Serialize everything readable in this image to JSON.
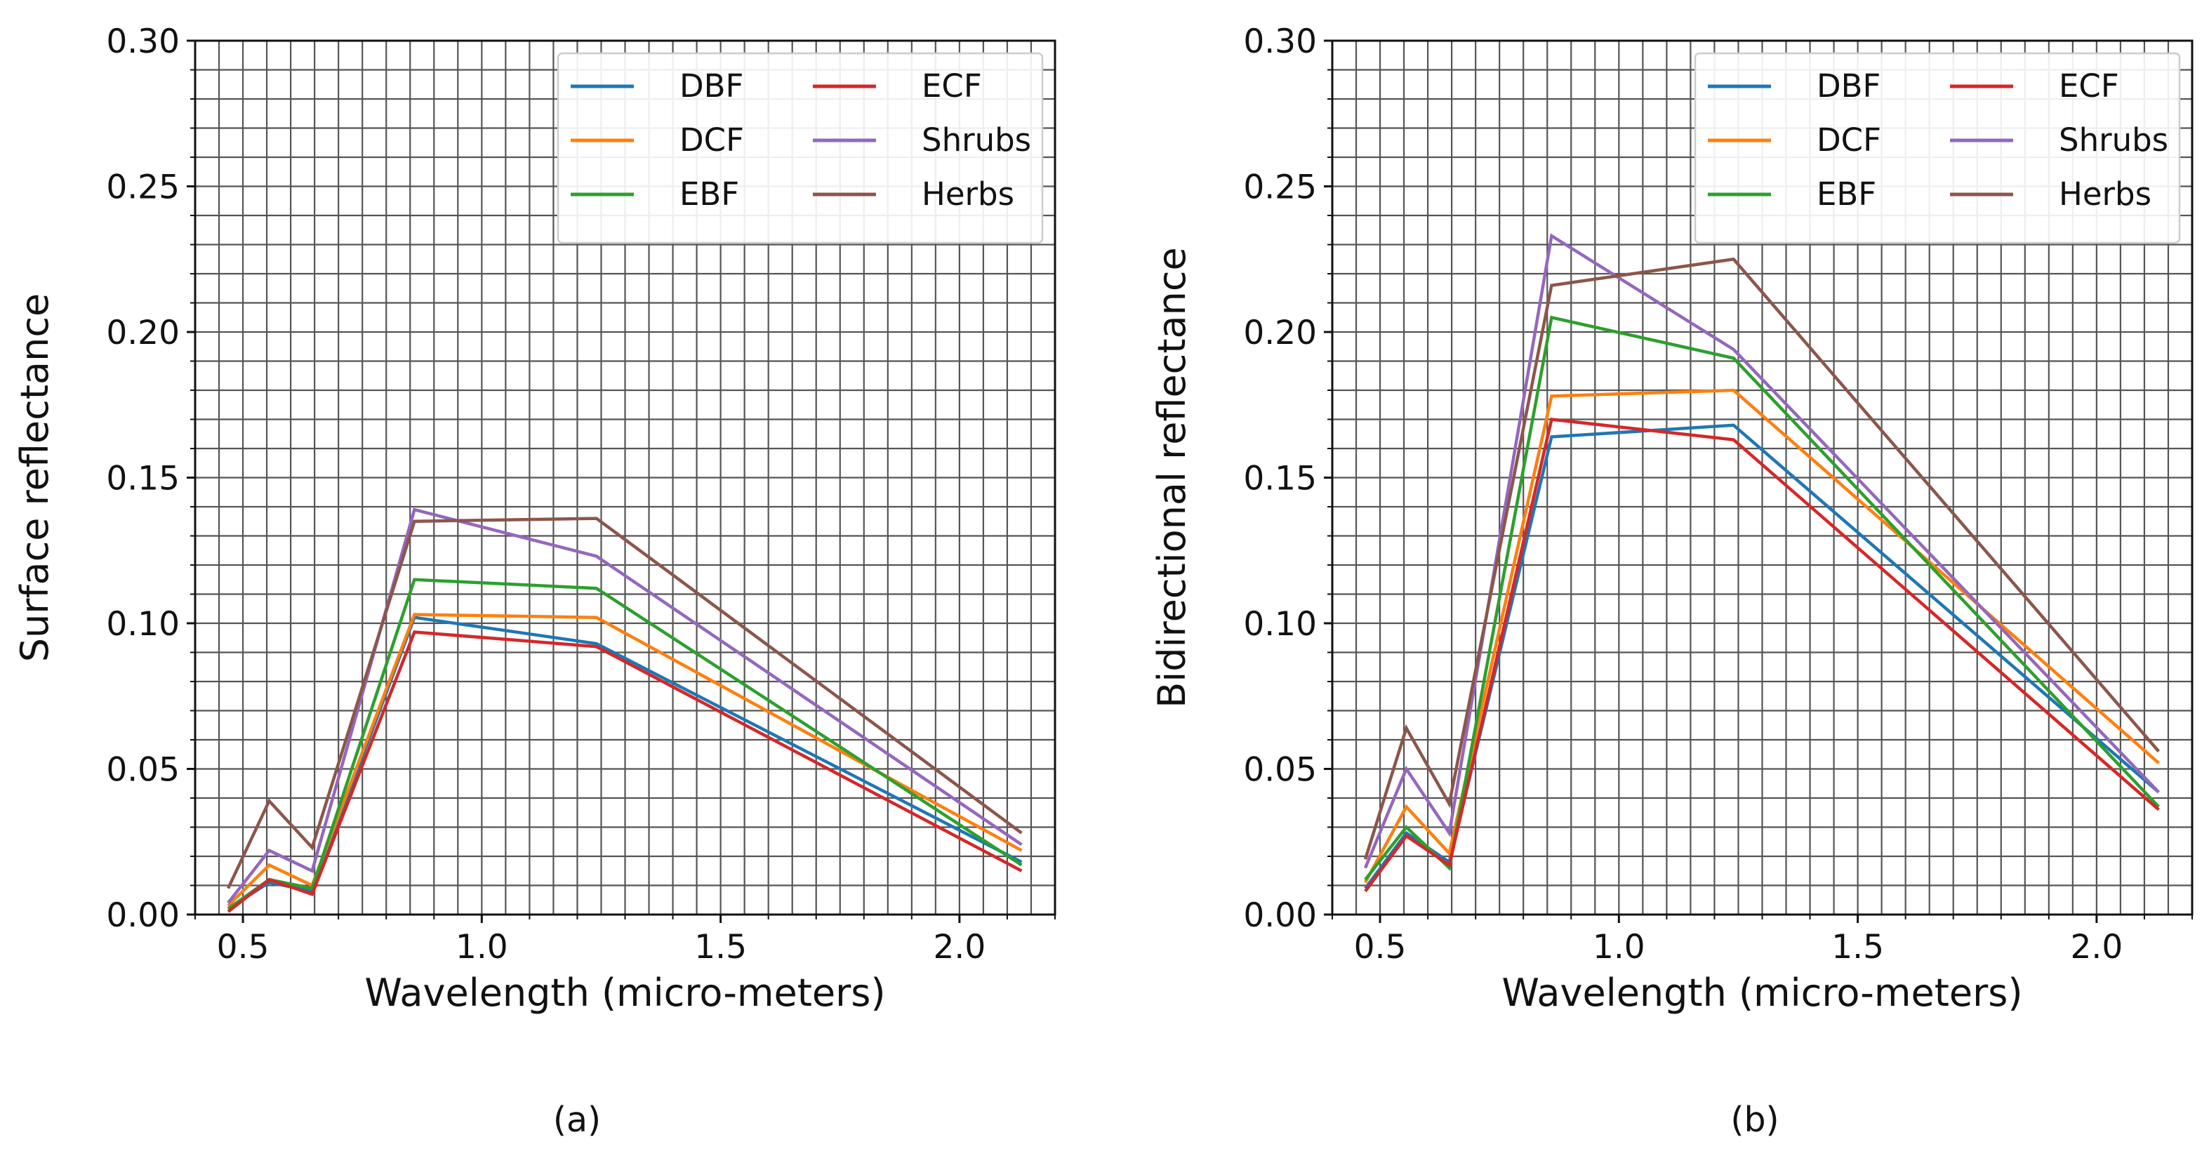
{
  "chart_data": [
    {
      "type": "line",
      "panel": "(a)",
      "xlabel": "Wavelength (micro-meters)",
      "ylabel": "Surface reflectance",
      "xlim": [
        0.4,
        2.2
      ],
      "ylim": [
        0.0,
        0.3
      ],
      "xticks": [
        "0.5",
        "1.0",
        "1.5",
        "2.0"
      ],
      "yticks": [
        "0.00",
        "0.05",
        "0.10",
        "0.15",
        "0.20",
        "0.25",
        "0.30"
      ],
      "grid": true,
      "legend_position": "top-right",
      "x": [
        0.469,
        0.555,
        0.645,
        0.859,
        1.24,
        2.13
      ],
      "series": [
        {
          "name": "DBF",
          "color": "#1f77b4",
          "values": [
            0.002,
            0.011,
            0.008,
            0.102,
            0.093,
            0.018
          ]
        },
        {
          "name": "DCF",
          "color": "#ff7f0e",
          "values": [
            0.003,
            0.017,
            0.01,
            0.103,
            0.102,
            0.022
          ]
        },
        {
          "name": "EBF",
          "color": "#2ca02c",
          "values": [
            0.002,
            0.012,
            0.009,
            0.115,
            0.112,
            0.017
          ]
        },
        {
          "name": "ECF",
          "color": "#d62728",
          "values": [
            0.001,
            0.012,
            0.007,
            0.097,
            0.092,
            0.015
          ]
        },
        {
          "name": "Shrubs",
          "color": "#9467bd",
          "values": [
            0.004,
            0.022,
            0.015,
            0.139,
            0.123,
            0.024
          ]
        },
        {
          "name": "Herbs",
          "color": "#8c564b",
          "values": [
            0.009,
            0.039,
            0.023,
            0.135,
            0.136,
            0.028
          ]
        }
      ]
    },
    {
      "type": "line",
      "panel": "(b)",
      "xlabel": "Wavelength (micro-meters)",
      "ylabel": "Bidirectional reflectance",
      "xlim": [
        0.4,
        2.2
      ],
      "ylim": [
        0.0,
        0.3
      ],
      "xticks": [
        "0.5",
        "1.0",
        "1.5",
        "2.0"
      ],
      "yticks": [
        "0.00",
        "0.05",
        "0.10",
        "0.15",
        "0.20",
        "0.25",
        "0.30"
      ],
      "grid": true,
      "legend_position": "top-right",
      "x": [
        0.469,
        0.555,
        0.645,
        0.859,
        1.24,
        2.13
      ],
      "series": [
        {
          "name": "DBF",
          "color": "#1f77b4",
          "values": [
            0.009,
            0.028,
            0.018,
            0.164,
            0.168,
            0.042
          ]
        },
        {
          "name": "DCF",
          "color": "#ff7f0e",
          "values": [
            0.011,
            0.037,
            0.021,
            0.178,
            0.18,
            0.052
          ]
        },
        {
          "name": "EBF",
          "color": "#2ca02c",
          "values": [
            0.012,
            0.03,
            0.016,
            0.205,
            0.191,
            0.037
          ]
        },
        {
          "name": "ECF",
          "color": "#d62728",
          "values": [
            0.008,
            0.027,
            0.017,
            0.17,
            0.163,
            0.036
          ]
        },
        {
          "name": "Shrubs",
          "color": "#9467bd",
          "values": [
            0.016,
            0.05,
            0.028,
            0.233,
            0.194,
            0.042
          ]
        },
        {
          "name": "Herbs",
          "color": "#8c564b",
          "values": [
            0.019,
            0.064,
            0.038,
            0.216,
            0.225,
            0.056
          ]
        }
      ]
    }
  ]
}
